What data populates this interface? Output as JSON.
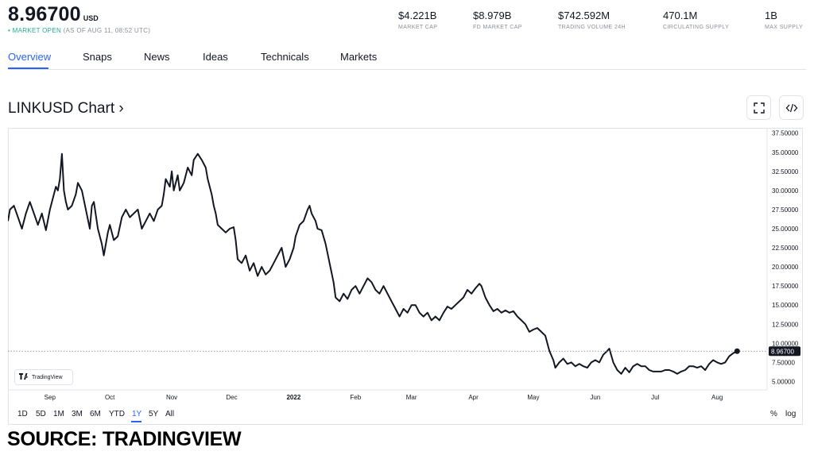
{
  "header": {
    "price": "8.96700",
    "price_unit": "USD",
    "status_dot": "•",
    "status_label": "MARKET OPEN",
    "status_time": "(AS OF AUG 11, 08:52 UTC)",
    "stats": [
      {
        "value": "$4.221B",
        "label": "MARKET CAP"
      },
      {
        "value": "$8.979B",
        "label": "FD MARKET CAP"
      },
      {
        "value": "$742.592M",
        "label": "TRADING VOLUME 24H"
      },
      {
        "value": "470.1M",
        "label": "CIRCULATING SUPPLY"
      },
      {
        "value": "1B",
        "label": "MAX SUPPLY"
      }
    ]
  },
  "tabs": [
    {
      "label": "Overview",
      "active": true
    },
    {
      "label": "Snaps",
      "active": false
    },
    {
      "label": "News",
      "active": false
    },
    {
      "label": "Ideas",
      "active": false
    },
    {
      "label": "Technicals",
      "active": false
    },
    {
      "label": "Markets",
      "active": false
    }
  ],
  "chart_title": "LINKUSD Chart ›",
  "icons": {
    "fullscreen": "fullscreen-icon",
    "embed": "embed-code-icon"
  },
  "watermark": "TradingView",
  "ranges": [
    "1D",
    "5D",
    "1M",
    "3M",
    "6M",
    "YTD",
    "1Y",
    "5Y",
    "All"
  ],
  "active_range": "1Y",
  "scale_options": [
    "%",
    "log"
  ],
  "source_text": "SOURCE: TRADINGVIEW",
  "colors": {
    "accent": "#2962ff",
    "line": "#131722",
    "market_open": "#22ab94",
    "muted": "#8a8f98"
  },
  "chart_data": {
    "type": "line",
    "title": "LINKUSD",
    "ylim": [
      3.9,
      38.2
    ],
    "yticks": [
      "37.50000",
      "35.00000",
      "32.50000",
      "30.00000",
      "27.50000",
      "25.00000",
      "22.50000",
      "20.00000",
      "17.50000",
      "15.00000",
      "12.50000",
      "10.00000",
      "7.50000",
      "5.00000"
    ],
    "ytick_values": [
      37.5,
      35,
      32.5,
      30,
      27.5,
      25,
      22.5,
      20,
      17.5,
      15,
      12.5,
      10,
      7.5,
      5
    ],
    "xlim": [
      "2021-08-11",
      "2022-08-26"
    ],
    "xticks": [
      {
        "label": "Sep",
        "date": "2021-09-01",
        "bold": false
      },
      {
        "label": "Oct",
        "date": "2021-10-01",
        "bold": false
      },
      {
        "label": "Nov",
        "date": "2021-11-01",
        "bold": false
      },
      {
        "label": "Dec",
        "date": "2021-12-01",
        "bold": false
      },
      {
        "label": "2022",
        "date": "2022-01-01",
        "bold": true
      },
      {
        "label": "Feb",
        "date": "2022-02-01",
        "bold": false
      },
      {
        "label": "Mar",
        "date": "2022-03-01",
        "bold": false
      },
      {
        "label": "Apr",
        "date": "2022-04-01",
        "bold": false
      },
      {
        "label": "May",
        "date": "2022-05-01",
        "bold": false
      },
      {
        "label": "Jun",
        "date": "2022-06-01",
        "bold": false
      },
      {
        "label": "Jul",
        "date": "2022-07-01",
        "bold": false
      },
      {
        "label": "Aug",
        "date": "2022-08-01",
        "bold": false
      }
    ],
    "last_value": 8.967,
    "last_label": "8.96700",
    "series": [
      {
        "points": [
          [
            "2021-08-11",
            26.0
          ],
          [
            "2021-08-12",
            27.5
          ],
          [
            "2021-08-14",
            28.0
          ],
          [
            "2021-08-16",
            26.5
          ],
          [
            "2021-08-18",
            25.0
          ],
          [
            "2021-08-20",
            27.0
          ],
          [
            "2021-08-22",
            28.5
          ],
          [
            "2021-08-24",
            27.0
          ],
          [
            "2021-08-26",
            25.5
          ],
          [
            "2021-08-28",
            27.0
          ],
          [
            "2021-08-30",
            24.8
          ],
          [
            "2021-09-01",
            27.5
          ],
          [
            "2021-09-03",
            29.5
          ],
          [
            "2021-09-04",
            30.5
          ],
          [
            "2021-09-05",
            30.0
          ],
          [
            "2021-09-06",
            31.5
          ],
          [
            "2021-09-07",
            34.8
          ],
          [
            "2021-09-08",
            30.0
          ],
          [
            "2021-09-09",
            28.5
          ],
          [
            "2021-09-10",
            27.5
          ],
          [
            "2021-09-12",
            28.0
          ],
          [
            "2021-09-14",
            29.5
          ],
          [
            "2021-09-15",
            31.0
          ],
          [
            "2021-09-17",
            30.0
          ],
          [
            "2021-09-19",
            27.5
          ],
          [
            "2021-09-21",
            25.0
          ],
          [
            "2021-09-22",
            28.0
          ],
          [
            "2021-09-23",
            28.5
          ],
          [
            "2021-09-25",
            25.0
          ],
          [
            "2021-09-27",
            23.0
          ],
          [
            "2021-09-28",
            21.5
          ],
          [
            "2021-09-30",
            24.5
          ],
          [
            "2021-10-01",
            25.5
          ],
          [
            "2021-10-03",
            23.5
          ],
          [
            "2021-10-05",
            24.0
          ],
          [
            "2021-10-07",
            26.5
          ],
          [
            "2021-10-09",
            27.5
          ],
          [
            "2021-10-11",
            26.5
          ],
          [
            "2021-10-13",
            27.0
          ],
          [
            "2021-10-15",
            27.5
          ],
          [
            "2021-10-17",
            25.0
          ],
          [
            "2021-10-19",
            26.0
          ],
          [
            "2021-10-21",
            27.0
          ],
          [
            "2021-10-23",
            26.0
          ],
          [
            "2021-10-25",
            27.5
          ],
          [
            "2021-10-27",
            28.0
          ],
          [
            "2021-10-28",
            29.5
          ],
          [
            "2021-10-29",
            31.5
          ],
          [
            "2021-10-31",
            30.5
          ],
          [
            "2021-11-01",
            32.5
          ],
          [
            "2021-11-02",
            30.0
          ],
          [
            "2021-11-04",
            32.0
          ],
          [
            "2021-11-05",
            30.0
          ],
          [
            "2021-11-07",
            31.0
          ],
          [
            "2021-11-09",
            33.0
          ],
          [
            "2021-11-11",
            32.0
          ],
          [
            "2021-11-12",
            34.0
          ],
          [
            "2021-11-14",
            34.8
          ],
          [
            "2021-11-16",
            34.0
          ],
          [
            "2021-11-18",
            33.0
          ],
          [
            "2021-11-19",
            31.5
          ],
          [
            "2021-11-21",
            29.5
          ],
          [
            "2021-11-22",
            28.0
          ],
          [
            "2021-11-23",
            27.0
          ],
          [
            "2021-11-24",
            25.5
          ],
          [
            "2021-11-26",
            25.0
          ],
          [
            "2021-11-28",
            24.5
          ],
          [
            "2021-11-30",
            25.0
          ],
          [
            "2021-12-02",
            25.2
          ],
          [
            "2021-12-03",
            23.5
          ],
          [
            "2021-12-04",
            21.0
          ],
          [
            "2021-12-06",
            20.5
          ],
          [
            "2021-12-08",
            21.5
          ],
          [
            "2021-12-10",
            19.5
          ],
          [
            "2021-12-12",
            20.5
          ],
          [
            "2021-12-14",
            18.8
          ],
          [
            "2021-12-16",
            20.0
          ],
          [
            "2021-12-18",
            19.0
          ],
          [
            "2021-12-20",
            19.5
          ],
          [
            "2021-12-22",
            20.5
          ],
          [
            "2021-12-24",
            21.5
          ],
          [
            "2021-12-26",
            22.5
          ],
          [
            "2021-12-28",
            20.0
          ],
          [
            "2021-12-30",
            21.0
          ],
          [
            "2022-01-01",
            22.5
          ],
          [
            "2022-01-02",
            24.0
          ],
          [
            "2022-01-04",
            25.5
          ],
          [
            "2022-01-06",
            26.0
          ],
          [
            "2022-01-08",
            27.5
          ],
          [
            "2022-01-09",
            28.0
          ],
          [
            "2022-01-10",
            27.0
          ],
          [
            "2022-01-12",
            26.0
          ],
          [
            "2022-01-13",
            25.0
          ],
          [
            "2022-01-15",
            24.8
          ],
          [
            "2022-01-17",
            23.0
          ],
          [
            "2022-01-19",
            20.5
          ],
          [
            "2022-01-21",
            18.0
          ],
          [
            "2022-01-22",
            16.0
          ],
          [
            "2022-01-24",
            15.5
          ],
          [
            "2022-01-26",
            16.5
          ],
          [
            "2022-01-28",
            15.8
          ],
          [
            "2022-01-30",
            17.0
          ],
          [
            "2022-02-01",
            17.5
          ],
          [
            "2022-02-03",
            16.5
          ],
          [
            "2022-02-05",
            17.5
          ],
          [
            "2022-02-07",
            18.5
          ],
          [
            "2022-02-09",
            18.0
          ],
          [
            "2022-02-11",
            17.0
          ],
          [
            "2022-02-13",
            16.5
          ],
          [
            "2022-02-15",
            17.5
          ],
          [
            "2022-02-17",
            16.5
          ],
          [
            "2022-02-19",
            15.5
          ],
          [
            "2022-02-21",
            14.5
          ],
          [
            "2022-02-23",
            13.5
          ],
          [
            "2022-02-25",
            14.5
          ],
          [
            "2022-02-27",
            14.0
          ],
          [
            "2022-03-01",
            15.0
          ],
          [
            "2022-03-03",
            15.0
          ],
          [
            "2022-03-05",
            14.0
          ],
          [
            "2022-03-07",
            13.5
          ],
          [
            "2022-03-09",
            14.0
          ],
          [
            "2022-03-11",
            13.0
          ],
          [
            "2022-03-13",
            13.5
          ],
          [
            "2022-03-15",
            13.0
          ],
          [
            "2022-03-17",
            14.0
          ],
          [
            "2022-03-19",
            14.8
          ],
          [
            "2022-03-21",
            14.5
          ],
          [
            "2022-03-23",
            15.0
          ],
          [
            "2022-03-25",
            15.5
          ],
          [
            "2022-03-27",
            16.0
          ],
          [
            "2022-03-29",
            17.0
          ],
          [
            "2022-03-31",
            16.5
          ],
          [
            "2022-04-02",
            17.2
          ],
          [
            "2022-04-04",
            17.8
          ],
          [
            "2022-04-05",
            17.5
          ],
          [
            "2022-04-07",
            16.0
          ],
          [
            "2022-04-09",
            15.0
          ],
          [
            "2022-04-11",
            14.2
          ],
          [
            "2022-04-13",
            14.5
          ],
          [
            "2022-04-15",
            14.0
          ],
          [
            "2022-04-17",
            14.3
          ],
          [
            "2022-04-19",
            14.0
          ],
          [
            "2022-04-21",
            14.2
          ],
          [
            "2022-04-23",
            13.5
          ],
          [
            "2022-04-25",
            13.0
          ],
          [
            "2022-04-27",
            12.5
          ],
          [
            "2022-04-29",
            11.5
          ],
          [
            "2022-05-01",
            11.8
          ],
          [
            "2022-05-03",
            12.0
          ],
          [
            "2022-05-05",
            11.5
          ],
          [
            "2022-05-07",
            11.0
          ],
          [
            "2022-05-09",
            9.0
          ],
          [
            "2022-05-11",
            7.8
          ],
          [
            "2022-05-12",
            6.8
          ],
          [
            "2022-05-14",
            7.5
          ],
          [
            "2022-05-16",
            8.0
          ],
          [
            "2022-05-18",
            7.3
          ],
          [
            "2022-05-20",
            7.5
          ],
          [
            "2022-05-22",
            7.0
          ],
          [
            "2022-05-24",
            7.3
          ],
          [
            "2022-05-26",
            7.0
          ],
          [
            "2022-05-28",
            6.8
          ],
          [
            "2022-05-30",
            7.5
          ],
          [
            "2022-06-01",
            7.8
          ],
          [
            "2022-06-03",
            7.5
          ],
          [
            "2022-06-05",
            8.5
          ],
          [
            "2022-06-07",
            9.0
          ],
          [
            "2022-06-08",
            9.3
          ],
          [
            "2022-06-10",
            7.5
          ],
          [
            "2022-06-12",
            6.5
          ],
          [
            "2022-06-14",
            6.0
          ],
          [
            "2022-06-16",
            6.8
          ],
          [
            "2022-06-18",
            6.2
          ],
          [
            "2022-06-20",
            7.0
          ],
          [
            "2022-06-22",
            7.3
          ],
          [
            "2022-06-24",
            7.0
          ],
          [
            "2022-06-26",
            7.0
          ],
          [
            "2022-06-28",
            6.5
          ],
          [
            "2022-06-30",
            6.3
          ],
          [
            "2022-07-02",
            6.3
          ],
          [
            "2022-07-04",
            6.3
          ],
          [
            "2022-07-06",
            6.5
          ],
          [
            "2022-07-08",
            6.5
          ],
          [
            "2022-07-10",
            6.3
          ],
          [
            "2022-07-12",
            6.0
          ],
          [
            "2022-07-14",
            6.3
          ],
          [
            "2022-07-16",
            6.5
          ],
          [
            "2022-07-18",
            7.0
          ],
          [
            "2022-07-20",
            7.0
          ],
          [
            "2022-07-22",
            6.8
          ],
          [
            "2022-07-24",
            7.0
          ],
          [
            "2022-07-26",
            6.5
          ],
          [
            "2022-07-28",
            7.3
          ],
          [
            "2022-07-30",
            7.8
          ],
          [
            "2022-08-01",
            7.5
          ],
          [
            "2022-08-03",
            7.3
          ],
          [
            "2022-08-05",
            7.5
          ],
          [
            "2022-08-07",
            8.3
          ],
          [
            "2022-08-09",
            8.7
          ],
          [
            "2022-08-11",
            8.967
          ]
        ]
      }
    ]
  }
}
